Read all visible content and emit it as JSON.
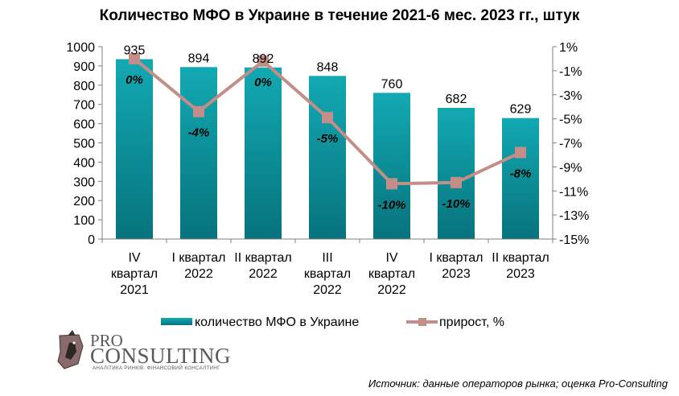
{
  "chart_data": {
    "type": "bar+line",
    "title": "Количество МФО в Украине в течение 2021-6 мес. 2023 гг., штук",
    "categories": [
      [
        "IV",
        "квартал",
        "2021"
      ],
      [
        "I квартал",
        "2022"
      ],
      [
        "II квартал",
        "2022"
      ],
      [
        "III",
        "квартал",
        "2022"
      ],
      [
        "IV",
        "квартал",
        "2022"
      ],
      [
        "I квартал",
        "2023"
      ],
      [
        "II квартал",
        "2023"
      ]
    ],
    "series": [
      {
        "name": "количество МФО в Украине",
        "type": "bar",
        "axis": "left",
        "color": "#0E9AA3",
        "values": [
          935,
          894,
          892,
          848,
          760,
          682,
          629
        ],
        "labels": [
          "935",
          "894",
          "892",
          "848",
          "760",
          "682",
          "629"
        ]
      },
      {
        "name": "прирост, %",
        "type": "line",
        "axis": "right",
        "color": "#C48E88",
        "values": [
          0,
          -4.4,
          -0.2,
          -4.9,
          -10.4,
          -10.3,
          -7.8
        ],
        "labels": [
          "0%",
          "-4%",
          "0%",
          "-5%",
          "-10%",
          "-10%",
          "-8%"
        ]
      }
    ],
    "yleft": {
      "min": 0,
      "max": 1000,
      "step": 100,
      "ticks": [
        "0",
        "100",
        "200",
        "300",
        "400",
        "500",
        "600",
        "700",
        "800",
        "900",
        "1000"
      ]
    },
    "yright": {
      "min": -15,
      "max": 1,
      "step": 2,
      "ticks": [
        "1%",
        "-1%",
        "-3%",
        "-5%",
        "-7%",
        "-9%",
        "-11%",
        "-13%",
        "-15%"
      ]
    },
    "grid": false,
    "legend": "bottom"
  },
  "logo": {
    "pro": "PRO",
    "consulting": "CONSULTING",
    "tagline": "АНАЛІТИКА РИНКІВ. ФІНАНСОВИЙ КОНСАЛТИНГ"
  },
  "source": "Источник: данные операторов рынка; оценка Pro-Consulting"
}
